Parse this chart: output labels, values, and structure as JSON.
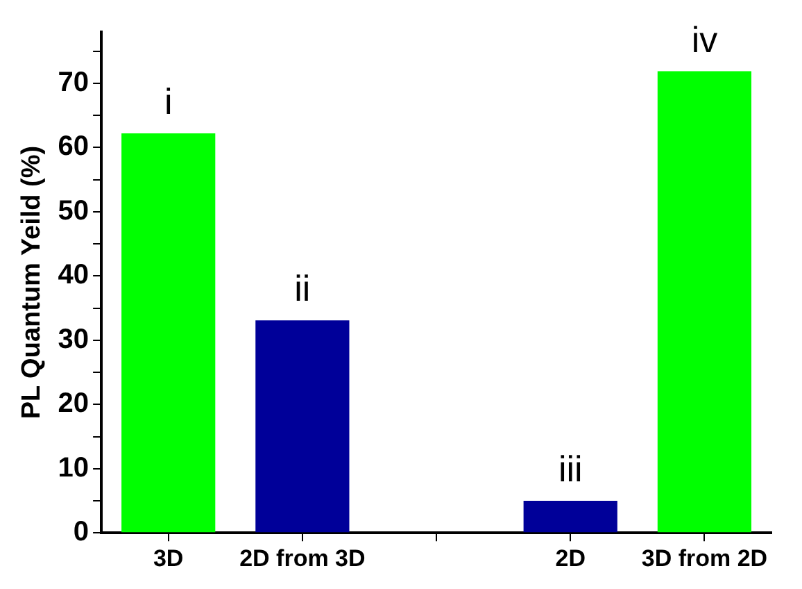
{
  "chart_data": {
    "type": "bar",
    "ylabel": "PL Quantum Yeild (%)",
    "categories": [
      "3D",
      "2D from 3D",
      null,
      "2D",
      "3D from 2D"
    ],
    "values": [
      62.2,
      33.1,
      null,
      5.0,
      71.9
    ],
    "colors": [
      "#00ff00",
      "#000099",
      null,
      "#000099",
      "#00ff00"
    ],
    "ylim": [
      0,
      78
    ],
    "yticks": [
      0,
      {
        "value": 5,
        "label": null
      },
      10,
      {
        "value": 15,
        "label": null
      },
      20,
      {
        "value": 25,
        "label": null
      },
      30,
      {
        "value": 35,
        "label": null
      },
      40,
      {
        "value": 45,
        "label": null
      },
      50,
      {
        "value": 55,
        "label": null
      },
      60,
      {
        "value": 65,
        "label": null
      },
      70,
      {
        "value": 75,
        "label": null
      }
    ],
    "annotations": [
      {
        "text": "i",
        "x": "3D",
        "y": 62.2
      },
      {
        "text": "ii",
        "x": "2D from 3D",
        "y": 33.1
      },
      {
        "text": "iii",
        "x": "2D",
        "y": 5.0
      },
      {
        "text": "iv",
        "x": "3D from 2D",
        "y": 71.9
      }
    ]
  }
}
